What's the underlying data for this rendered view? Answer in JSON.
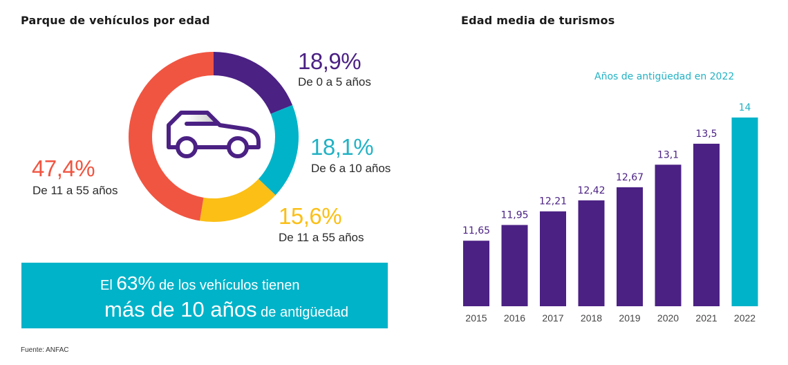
{
  "left_panel": {
    "title": "Parque de vehículos por edad",
    "center_icon": "car-icon",
    "banner": {
      "line1_prefix": "El",
      "line1_highlight": "63%",
      "line1_suffix": "de los vehículos tienen",
      "line2_highlight": "más de 10 años",
      "line2_suffix": "de antigüedad"
    },
    "source": "Fuente: ANFAC"
  },
  "right_panel": {
    "title": "Edad media de turismos",
    "subtitle": "Años de antigüedad en 2022"
  },
  "colors": {
    "purple": "#4b2184",
    "teal": "#00b3c9",
    "yellow": "#fbbf16",
    "red": "#f05541",
    "text_dark": "#1a1a1a"
  },
  "chart_data": [
    {
      "type": "pie",
      "variant": "donut",
      "title": "Parque de vehículos por edad",
      "slices": [
        {
          "label": "De 0 a 5 años",
          "value": 18.9,
          "display": "18,9%",
          "color": "#4b2184"
        },
        {
          "label": "De 6 a 10 años",
          "value": 18.1,
          "display": "18,1%",
          "color": "#00b3c9"
        },
        {
          "label": "De 11 a 55 años",
          "value": 15.6,
          "display": "15,6%",
          "color": "#fbbf16"
        },
        {
          "label": "De 11 a 55 años",
          "value": 47.4,
          "display": "47,4%",
          "color": "#f05541"
        }
      ]
    },
    {
      "type": "bar",
      "title": "Edad media de turismos",
      "subtitle": "Años de antigüedad en 2022",
      "categories": [
        "2015",
        "2016",
        "2017",
        "2018",
        "2019",
        "2020",
        "2021",
        "2022"
      ],
      "values": [
        11.65,
        11.95,
        12.21,
        12.42,
        12.67,
        13.1,
        13.5,
        14
      ],
      "value_labels": [
        "11,65",
        "11,95",
        "12,21",
        "12,42",
        "12,67",
        "13,1",
        "13,5",
        "14"
      ],
      "highlight_category": "2022",
      "bar_color": "#4b2184",
      "highlight_color": "#00b3c9",
      "xlabel": "",
      "ylabel": "",
      "ylim": [
        10.4,
        14
      ],
      "grid": false
    }
  ]
}
